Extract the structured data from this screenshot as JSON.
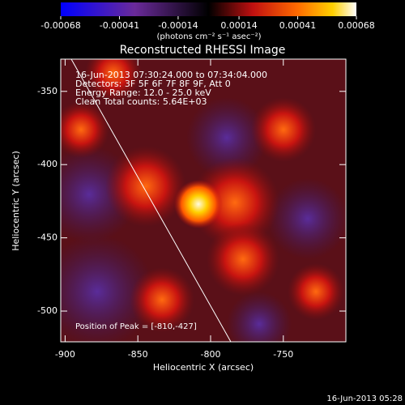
{
  "chart_data": {
    "type": "heatmap",
    "title": "Reconstructed RHESSI Image",
    "annotations": [
      "16-Jun-2013 07:30:24.000 to 07:34:04.000",
      "Detectors: 3F 5F 6F 7F 8F 9F, Att 0",
      "Energy Range: 12.0 - 25.0 keV",
      "Clean    Total counts: 5.64E+03"
    ],
    "peak_label": "Position of Peak = [-810,-427]",
    "xlabel": "Heliocentric X (arcsec)",
    "ylabel": "Heliocentric Y (arcsec)",
    "xlim": [
      -903,
      -707
    ],
    "xticks": [
      -900,
      -850,
      -800,
      -750
    ],
    "ylim": [
      -521,
      -328
    ],
    "yticks": [
      -500,
      -450,
      -400,
      -350
    ],
    "colorbar": {
      "lim": [
        -0.00068,
        0.00068
      ],
      "ticks": [
        -0.00068,
        -0.00041,
        -0.00014,
        0.00014,
        0.00041,
        0.00068
      ],
      "label": "(photons cm⁻² s⁻¹ asec⁻²)"
    },
    "footer": "16-Jun-2013 05:28"
  }
}
